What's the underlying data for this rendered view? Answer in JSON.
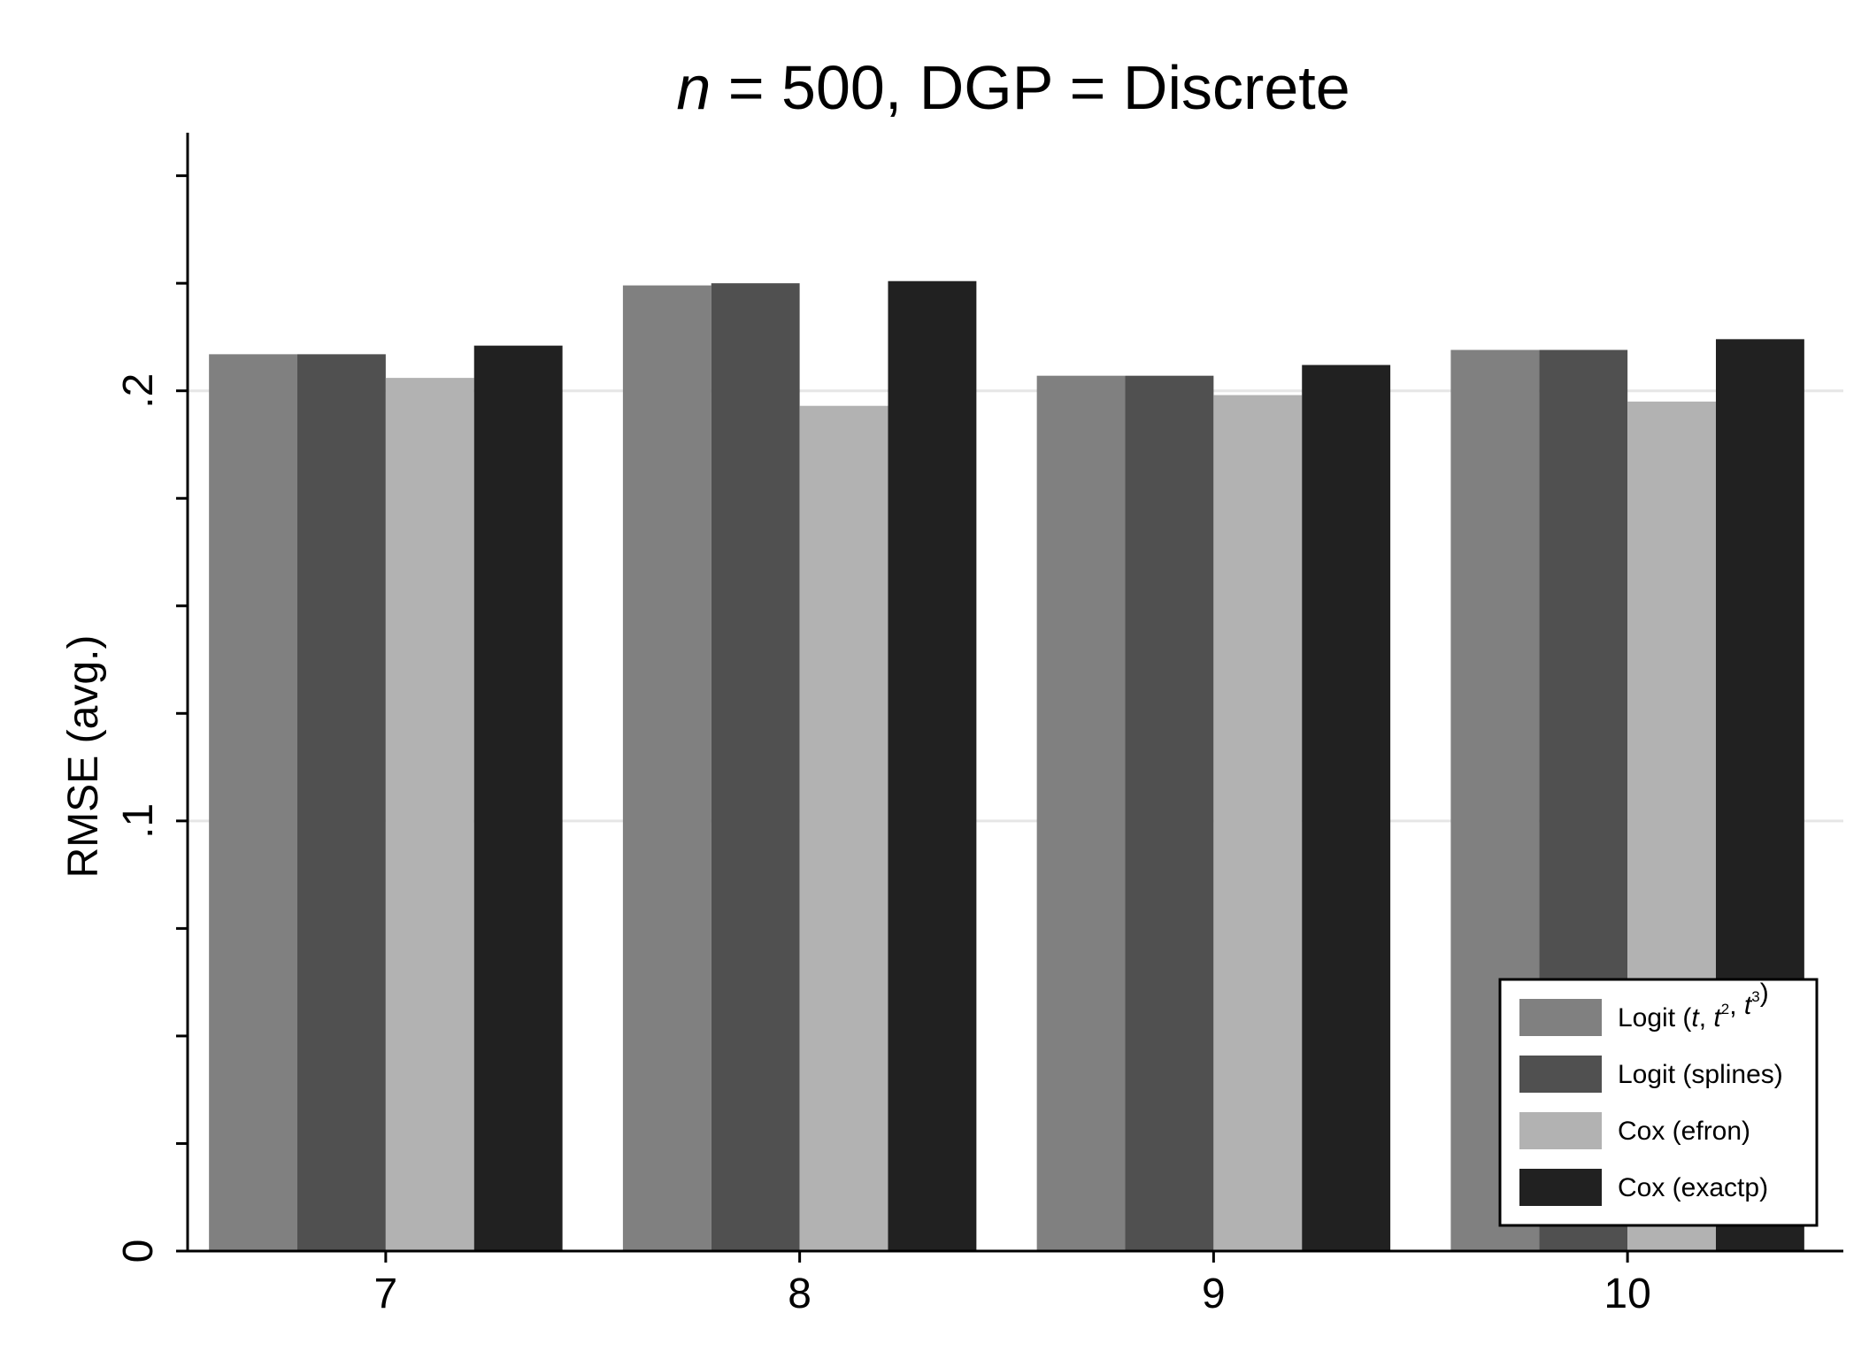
{
  "chart_data": {
    "type": "bar",
    "title": "n = 500, DGP = Discrete",
    "title_italic": "n",
    "title_rest": " = 500, DGP = Discrete",
    "xlabel": "",
    "ylabel": "RMSE (avg.)",
    "ylim": [
      0,
      0.26
    ],
    "yticks_major": [
      0,
      0.1,
      0.2
    ],
    "ytick_labels": [
      "0",
      ".1",
      ".2"
    ],
    "yticks_minor": [
      0.025,
      0.05,
      0.075,
      0.125,
      0.15,
      0.175,
      0.225,
      0.25
    ],
    "grid": true,
    "legend_position": "bottom-right",
    "categories": [
      "7",
      "8",
      "9",
      "10"
    ],
    "series": [
      {
        "name": "Logit (t, t2, t3)",
        "color": "#808080",
        "values": [
          0.2085,
          0.2245,
          0.2035,
          0.2095
        ]
      },
      {
        "name": "Logit (splines)",
        "color": "#505050",
        "values": [
          0.2085,
          0.225,
          0.2035,
          0.2095
        ]
      },
      {
        "name": "Cox (efron)",
        "color": "#b2b2b2",
        "values": [
          0.203,
          0.1965,
          0.199,
          0.1975
        ]
      },
      {
        "name": "Cox (exactp)",
        "color": "#212121",
        "values": [
          0.2105,
          0.2255,
          0.206,
          0.212
        ]
      }
    ],
    "legend_entries": [
      {
        "base": "Logit (",
        "italic": "t",
        "mid1": ", ",
        "italic2": "t",
        "sup2": "2",
        "mid2": ", ",
        "italic3": "t",
        "sup3": "3",
        "end": ")"
      },
      {
        "label": "Logit (splines)"
      },
      {
        "label": "Cox (efron)"
      },
      {
        "label": "Cox (exactp)"
      }
    ]
  }
}
